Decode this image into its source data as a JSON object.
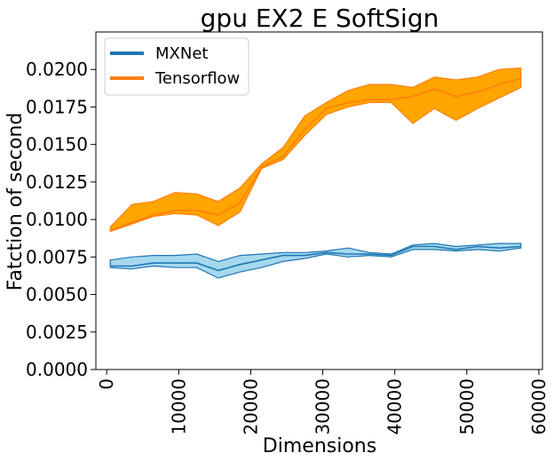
{
  "chart_data": {
    "type": "line",
    "title": "gpu EX2 E SoftSign",
    "xlabel": "Dimensions",
    "ylabel": "Fatction of second",
    "xlim": [
      -1500,
      60500
    ],
    "ylim": [
      0,
      0.0225
    ],
    "xticks": [
      0,
      10000,
      20000,
      30000,
      40000,
      50000,
      60000
    ],
    "xtick_labels": [
      "0",
      "10000",
      "20000",
      "30000",
      "40000",
      "50000",
      "60000"
    ],
    "yticks": [
      0,
      0.0025,
      0.005,
      0.0075,
      0.01,
      0.0125,
      0.015,
      0.0175,
      0.02
    ],
    "ytick_labels": [
      "0.0000",
      "0.0025",
      "0.0050",
      "0.0075",
      "0.0100",
      "0.0125",
      "0.0150",
      "0.0175",
      "0.0200"
    ],
    "grid": false,
    "legend_position": "top-left",
    "x": [
      500,
      3500,
      6500,
      9500,
      12500,
      15500,
      18500,
      21500,
      24500,
      27500,
      30500,
      33500,
      36500,
      39500,
      42500,
      45500,
      48500,
      51500,
      54500,
      57500
    ],
    "series": [
      {
        "name": "MXNet",
        "color": "#1f77b4",
        "fill_color": "#a6d8ed",
        "mean": [
          0.0069,
          0.0069,
          0.0071,
          0.0071,
          0.0071,
          0.0066,
          0.007,
          0.0073,
          0.0076,
          0.0076,
          0.0078,
          0.0077,
          0.0077,
          0.0076,
          0.0082,
          0.0082,
          0.008,
          0.0082,
          0.0081,
          0.0082
        ],
        "upper": [
          0.0073,
          0.0075,
          0.0076,
          0.0076,
          0.0077,
          0.0072,
          0.0076,
          0.0077,
          0.0078,
          0.0078,
          0.0079,
          0.0081,
          0.0078,
          0.0077,
          0.0083,
          0.0084,
          0.0082,
          0.0083,
          0.0084,
          0.0084
        ],
        "lower": [
          0.0068,
          0.0067,
          0.0069,
          0.0068,
          0.0068,
          0.0061,
          0.0065,
          0.0068,
          0.0072,
          0.0074,
          0.0077,
          0.0075,
          0.0076,
          0.0075,
          0.008,
          0.008,
          0.0079,
          0.008,
          0.0079,
          0.0081
        ]
      },
      {
        "name": "Tensorflow",
        "color": "#ff7f0e",
        "fill_color": "#ffa500",
        "mean": [
          0.0093,
          0.0098,
          0.0103,
          0.0106,
          0.0106,
          0.0103,
          0.0111,
          0.0135,
          0.0142,
          0.016,
          0.0174,
          0.0178,
          0.018,
          0.018,
          0.0182,
          0.0187,
          0.0182,
          0.0185,
          0.019,
          0.0194
        ],
        "upper": [
          0.0095,
          0.011,
          0.0112,
          0.0118,
          0.0117,
          0.0112,
          0.0121,
          0.0137,
          0.0148,
          0.0169,
          0.0178,
          0.0186,
          0.019,
          0.019,
          0.0188,
          0.0195,
          0.0193,
          0.0195,
          0.02,
          0.0201
        ],
        "lower": [
          0.0092,
          0.0097,
          0.0102,
          0.0104,
          0.0103,
          0.0096,
          0.0105,
          0.0134,
          0.014,
          0.0156,
          0.017,
          0.0175,
          0.0178,
          0.0178,
          0.0164,
          0.0174,
          0.0166,
          0.0174,
          0.0181,
          0.0188
        ]
      }
    ]
  }
}
